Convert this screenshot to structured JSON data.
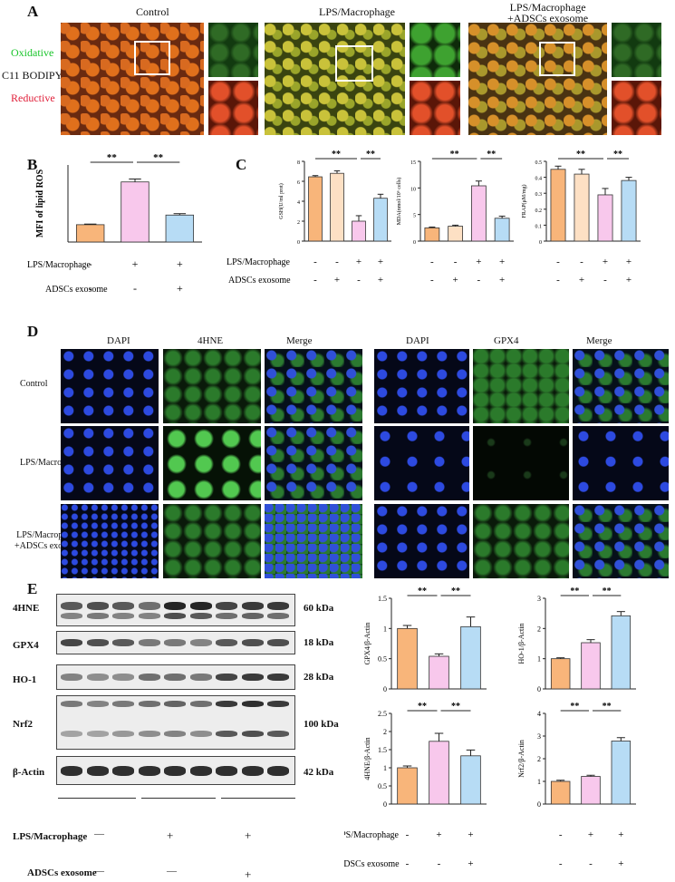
{
  "panels": {
    "a": "A",
    "b": "B",
    "c": "C",
    "d": "D",
    "e": "E"
  },
  "panel_a": {
    "titles": [
      "Control",
      "LPS/Macrophage",
      "LPS/Macrophage",
      "+ADSCs exosome"
    ],
    "side": [
      "Oxidative",
      "C11 BODIPY",
      "Reductive"
    ],
    "colors": {
      "oxidative": "#19c42a",
      "reductive": "#e0203a"
    }
  },
  "panel_d": {
    "cols": [
      "DAPI",
      "4HNE",
      "Merge",
      "DAPI",
      "GPX4",
      "Merge"
    ],
    "rows": [
      "Control",
      "LPS/Macrophage",
      "LPS/Macrophage",
      "+ADSCs exosome"
    ]
  },
  "axis_rows": {
    "lps": "LPS/Macrophage",
    "adsc": "ADSCs exosome"
  },
  "signs": {
    "minus": "-",
    "plus": "+",
    "dash": "—"
  },
  "sig": "**",
  "colors": {
    "g1": "#f8b57a",
    "g1b": "#fde0c4",
    "g2": "#f8c8ec",
    "g3": "#b7dcf5",
    "stroke": "#333333"
  },
  "panel_e": {
    "bands": [
      "4HNE",
      "GPX4",
      "HO-1",
      "Nrf2",
      "β-Actin"
    ],
    "kda": [
      "60 kDa",
      "18 kDa",
      "28 kDa",
      "100 kDa",
      "42 kDa"
    ],
    "lps": "LPS/Macrophage",
    "adsc": "ADSCs exosome"
  },
  "chart_data": [
    {
      "id": "b",
      "type": "bar",
      "ylabel": "MFI of lipid ROS",
      "ylim": [
        0,
        1000
      ],
      "yticks": [],
      "values": [
        225,
        780,
        350
      ],
      "errors": [
        8,
        38,
        18
      ],
      "colors": [
        "g1",
        "g2",
        "g3"
      ],
      "lps": [
        "-",
        "+",
        "+"
      ],
      "adsc": [
        "-",
        "-",
        "+"
      ],
      "sig": [
        [
          0,
          1
        ],
        [
          1,
          2
        ]
      ]
    },
    {
      "id": "gsh",
      "type": "bar",
      "ylabel": "GSH(U/ml prot)",
      "ylim": [
        0,
        8
      ],
      "yticks": [
        0,
        2,
        4,
        6,
        8
      ],
      "values": [
        6.45,
        6.8,
        2.0,
        4.3
      ],
      "errors": [
        0.12,
        0.25,
        0.55,
        0.4
      ],
      "colors": [
        "g1",
        "g1b",
        "g2",
        "g3"
      ],
      "lps": [
        "-",
        "-",
        "+",
        "+"
      ],
      "adsc": [
        "-",
        "+",
        "-",
        "+"
      ],
      "sig": [
        [
          0,
          2
        ],
        [
          2,
          3
        ]
      ]
    },
    {
      "id": "mda",
      "type": "bar",
      "ylabel": "MDA(nmol/10⁶ cells)",
      "ylim": [
        0,
        15
      ],
      "yticks": [
        0,
        5,
        10,
        15
      ],
      "values": [
        2.5,
        2.8,
        10.4,
        4.3
      ],
      "errors": [
        0.15,
        0.2,
        0.9,
        0.4
      ],
      "colors": [
        "g1",
        "g1b",
        "g2",
        "g3"
      ],
      "lps": [
        "-",
        "-",
        "+",
        "+"
      ],
      "adsc": [
        "-",
        "+",
        "-",
        "+"
      ],
      "sig": [
        [
          0,
          2
        ],
        [
          2,
          3
        ]
      ]
    },
    {
      "id": "frap",
      "type": "bar",
      "ylabel": "FRAP(μM/mg)",
      "ylim": [
        0,
        0.5
      ],
      "yticks": [
        0,
        0.1,
        0.2,
        0.3,
        0.4,
        0.5
      ],
      "values": [
        0.45,
        0.42,
        0.29,
        0.38
      ],
      "errors": [
        0.02,
        0.03,
        0.04,
        0.02
      ],
      "colors": [
        "g1",
        "g1b",
        "g2",
        "g3"
      ],
      "lps": [
        "-",
        "-",
        "+",
        "+"
      ],
      "adsc": [
        "-",
        "+",
        "-",
        "+"
      ],
      "sig": [
        [
          0,
          2
        ],
        [
          2,
          3
        ]
      ]
    },
    {
      "id": "gpx4",
      "type": "bar",
      "ylabel": "GPX4/β-Actin",
      "ylim": [
        0,
        1.5
      ],
      "yticks": [
        0.0,
        0.5,
        1.0,
        1.5
      ],
      "values": [
        1.0,
        0.54,
        1.03
      ],
      "errors": [
        0.05,
        0.04,
        0.16
      ],
      "colors": [
        "g1",
        "g2",
        "g3"
      ],
      "sig": [
        [
          0,
          1
        ],
        [
          1,
          2
        ]
      ]
    },
    {
      "id": "ho1",
      "type": "bar",
      "ylabel": "HO-1/β-Actin",
      "ylim": [
        0,
        3
      ],
      "yticks": [
        0,
        1,
        2,
        3
      ],
      "values": [
        1.0,
        1.53,
        2.42
      ],
      "errors": [
        0.03,
        0.1,
        0.14
      ],
      "colors": [
        "g1",
        "g2",
        "g3"
      ],
      "sig": [
        [
          0,
          1
        ],
        [
          1,
          2
        ]
      ]
    },
    {
      "id": "hne",
      "type": "bar",
      "ylabel": "4HNE/β-Actin",
      "ylim": [
        0,
        2.5
      ],
      "yticks": [
        0.0,
        0.5,
        1.0,
        1.5,
        2.0,
        2.5
      ],
      "values": [
        1.0,
        1.73,
        1.33
      ],
      "errors": [
        0.05,
        0.22,
        0.16
      ],
      "colors": [
        "g1",
        "g2",
        "g3"
      ],
      "sig": [
        [
          0,
          1
        ],
        [
          1,
          2
        ]
      ]
    },
    {
      "id": "nrf2",
      "type": "bar",
      "ylabel": "Nrf2/β-Actin",
      "ylim": [
        0,
        4
      ],
      "yticks": [
        0,
        1,
        2,
        3,
        4
      ],
      "values": [
        1.0,
        1.22,
        2.78
      ],
      "errors": [
        0.05,
        0.05,
        0.15
      ],
      "colors": [
        "g1",
        "g2",
        "g3"
      ],
      "sig": [
        [
          0,
          1
        ],
        [
          1,
          2
        ]
      ]
    }
  ]
}
